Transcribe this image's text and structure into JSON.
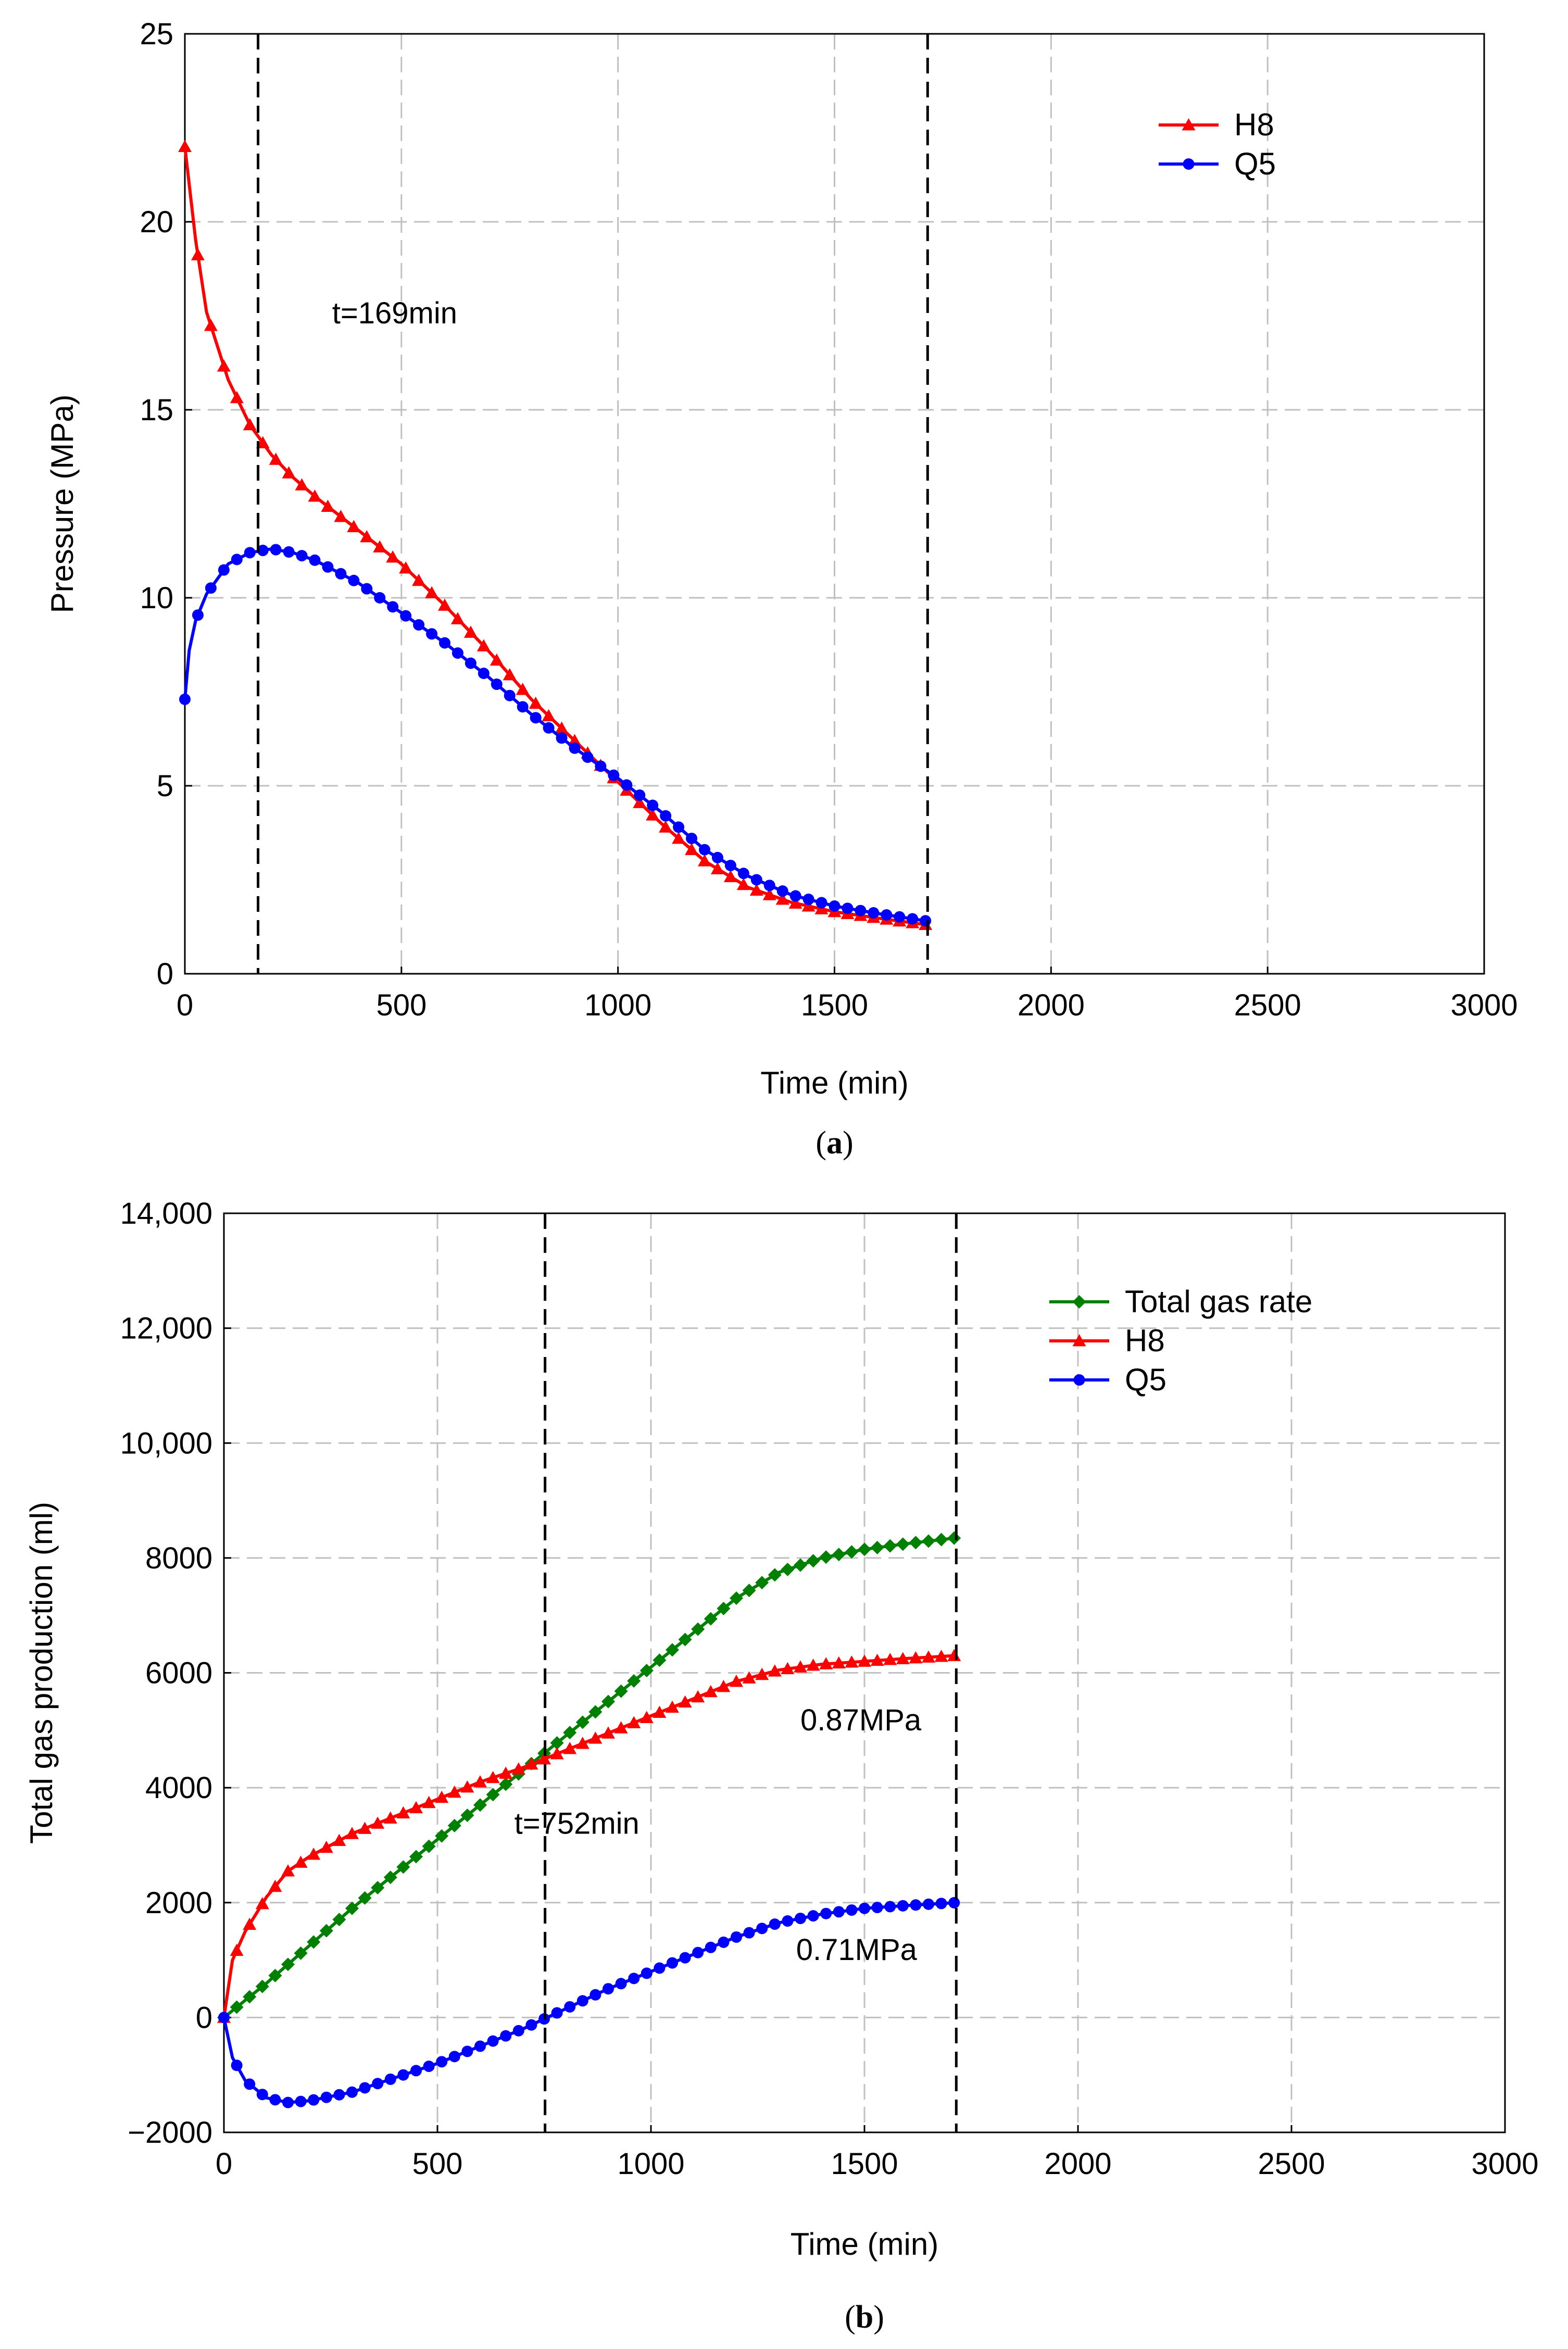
{
  "chart_data": [
    {
      "id": "a",
      "type": "line",
      "panel_label": "a",
      "xlabel": "Time (min)",
      "ylabel": "Pressure (MPa)",
      "xlim": [
        0,
        3000
      ],
      "ylim": [
        0,
        25
      ],
      "xticks": [
        0,
        500,
        1000,
        1500,
        2000,
        2500,
        3000
      ],
      "xtick_labels": [
        "0",
        "500",
        "1000",
        "1500",
        "2000",
        "2500",
        "3000"
      ],
      "yticks": [
        0,
        5,
        10,
        15,
        20,
        25
      ],
      "ytick_labels": [
        "0",
        "5",
        "10",
        "15",
        "20",
        "25"
      ],
      "grid": true,
      "legend_position": "top-right",
      "vlines": [
        169,
        1715
      ],
      "annotations": [
        {
          "text": "t=169min",
          "x": 340,
          "y": 17.3
        }
      ],
      "series": [
        {
          "name": "H8",
          "color": "#ff0000",
          "marker": "triangle",
          "points": [
            [
              0,
              22
            ],
            [
              25,
              19.5
            ],
            [
              50,
              17.6
            ],
            [
              100,
              15.8
            ],
            [
              150,
              14.6
            ],
            [
              200,
              13.8
            ],
            [
              250,
              13.2
            ],
            [
              300,
              12.7
            ],
            [
              400,
              11.8
            ],
            [
              500,
              10.9
            ],
            [
              600,
              9.8
            ],
            [
              700,
              8.6
            ],
            [
              800,
              7.3
            ],
            [
              900,
              6.2
            ],
            [
              1000,
              5.1
            ],
            [
              1100,
              4.0
            ],
            [
              1200,
              3.0
            ],
            [
              1300,
              2.3
            ],
            [
              1400,
              1.9
            ],
            [
              1500,
              1.65
            ],
            [
              1600,
              1.48
            ],
            [
              1715,
              1.3
            ]
          ]
        },
        {
          "name": "Q5",
          "color": "#0000ff",
          "marker": "circle",
          "points": [
            [
              0,
              7.3
            ],
            [
              10,
              8.6
            ],
            [
              25,
              9.4
            ],
            [
              50,
              10.1
            ],
            [
              100,
              10.9
            ],
            [
              150,
              11.2
            ],
            [
              200,
              11.3
            ],
            [
              250,
              11.2
            ],
            [
              300,
              11.0
            ],
            [
              400,
              10.4
            ],
            [
              500,
              9.6
            ],
            [
              600,
              8.8
            ],
            [
              700,
              7.9
            ],
            [
              800,
              6.9
            ],
            [
              900,
              6.0
            ],
            [
              1000,
              5.2
            ],
            [
              1100,
              4.3
            ],
            [
              1200,
              3.3
            ],
            [
              1300,
              2.6
            ],
            [
              1400,
              2.1
            ],
            [
              1500,
              1.8
            ],
            [
              1600,
              1.6
            ],
            [
              1715,
              1.4
            ]
          ]
        }
      ]
    },
    {
      "id": "b",
      "type": "line",
      "panel_label": "b",
      "xlabel": "Time (min)",
      "ylabel": "Total gas production (ml)",
      "xlim": [
        0,
        3000
      ],
      "ylim": [
        -2000,
        14000
      ],
      "xticks": [
        0,
        500,
        1000,
        1500,
        2000,
        2500,
        3000
      ],
      "xtick_labels": [
        "0",
        "500",
        "1000",
        "1500",
        "2000",
        "2500",
        "3000"
      ],
      "yticks": [
        -2000,
        0,
        2000,
        4000,
        6000,
        8000,
        10000,
        12000,
        14000
      ],
      "ytick_labels": [
        "−2000",
        "0",
        "2000",
        "4000",
        "6000",
        "8000",
        "10,000",
        "12,000",
        "14,000"
      ],
      "grid": true,
      "legend_position": "top-right",
      "vlines": [
        752,
        1715
      ],
      "annotations": [
        {
          "text": "t=752min",
          "x": 680,
          "y": 3200
        },
        {
          "text": "0.87MPa",
          "x": 1350,
          "y": 5000
        },
        {
          "text": "0.71MPa",
          "x": 1340,
          "y": 1000
        }
      ],
      "series": [
        {
          "name": "Total gas rate",
          "color": "#008000",
          "marker": "diamond",
          "points": [
            [
              0,
              0
            ],
            [
              100,
              600
            ],
            [
              200,
              1250
            ],
            [
              300,
              1900
            ],
            [
              400,
              2500
            ],
            [
              500,
              3100
            ],
            [
              600,
              3700
            ],
            [
              700,
              4300
            ],
            [
              800,
              4900
            ],
            [
              900,
              5500
            ],
            [
              1000,
              6100
            ],
            [
              1100,
              6700
            ],
            [
              1200,
              7300
            ],
            [
              1300,
              7750
            ],
            [
              1400,
              8000
            ],
            [
              1500,
              8150
            ],
            [
              1600,
              8250
            ],
            [
              1715,
              8350
            ]
          ]
        },
        {
          "name": "H8",
          "color": "#ff0000",
          "marker": "triangle",
          "points": [
            [
              0,
              0
            ],
            [
              20,
              1000
            ],
            [
              50,
              1500
            ],
            [
              100,
              2100
            ],
            [
              150,
              2550
            ],
            [
              200,
              2800
            ],
            [
              300,
              3200
            ],
            [
              400,
              3500
            ],
            [
              500,
              3800
            ],
            [
              600,
              4100
            ],
            [
              700,
              4350
            ],
            [
              800,
              4650
            ],
            [
              900,
              4950
            ],
            [
              1000,
              5250
            ],
            [
              1100,
              5550
            ],
            [
              1200,
              5850
            ],
            [
              1300,
              6050
            ],
            [
              1400,
              6150
            ],
            [
              1500,
              6200
            ],
            [
              1600,
              6250
            ],
            [
              1715,
              6300
            ]
          ]
        },
        {
          "name": "Q5",
          "color": "#0000ff",
          "marker": "circle",
          "points": [
            [
              0,
              0
            ],
            [
              20,
              -700
            ],
            [
              50,
              -1100
            ],
            [
              100,
              -1400
            ],
            [
              150,
              -1480
            ],
            [
              200,
              -1450
            ],
            [
              300,
              -1300
            ],
            [
              400,
              -1050
            ],
            [
              500,
              -800
            ],
            [
              600,
              -500
            ],
            [
              700,
              -200
            ],
            [
              800,
              150
            ],
            [
              900,
              500
            ],
            [
              1000,
              800
            ],
            [
              1100,
              1100
            ],
            [
              1200,
              1400
            ],
            [
              1300,
              1650
            ],
            [
              1400,
              1800
            ],
            [
              1500,
              1900
            ],
            [
              1600,
              1950
            ],
            [
              1715,
              2000
            ]
          ]
        }
      ]
    }
  ]
}
